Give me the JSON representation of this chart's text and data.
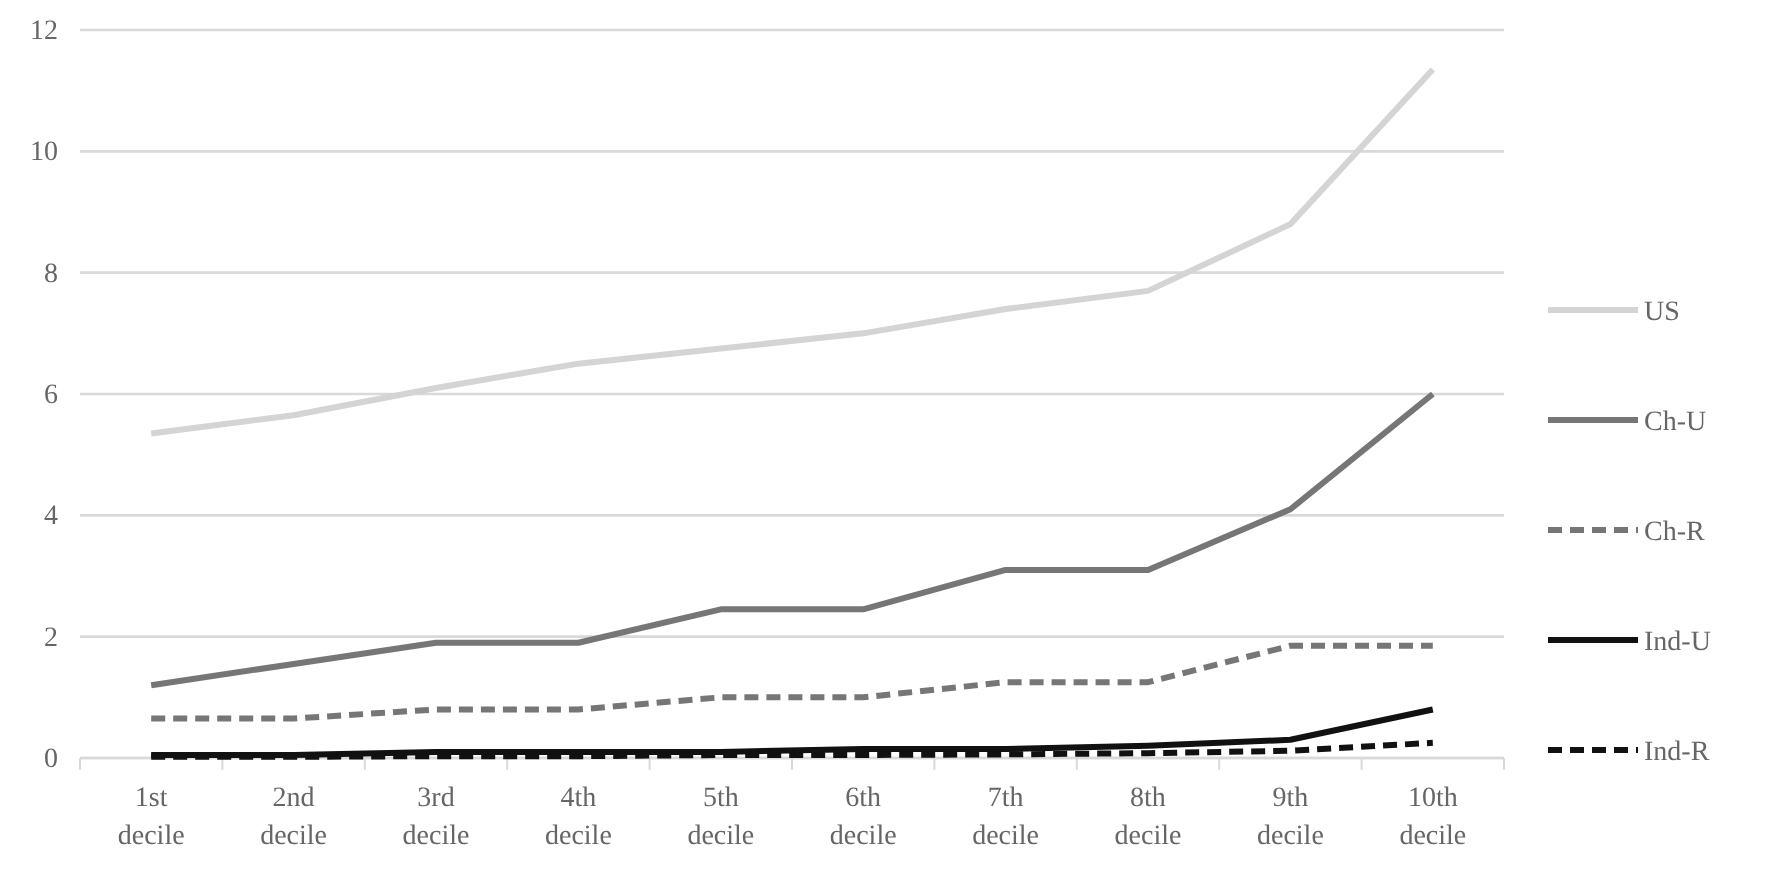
{
  "chart_data": {
    "type": "line",
    "categories": [
      "1st decile",
      "2nd decile",
      "3rd decile",
      "4th decile",
      "5th decile",
      "6th decile",
      "7th decile",
      "8th decile",
      "9th decile",
      "10th decile"
    ],
    "series": [
      {
        "name": "US",
        "color": "#d4d4d4",
        "values": [
          5.35,
          5.65,
          6.1,
          6.5,
          6.75,
          7.0,
          7.4,
          7.7,
          8.8,
          11.35
        ]
      },
      {
        "name": "Ch-U",
        "color": "#767676",
        "values": [
          1.2,
          1.55,
          1.9,
          1.9,
          2.45,
          2.45,
          3.1,
          3.1,
          4.1,
          6.0
        ]
      },
      {
        "name": "Ch-R",
        "color": "#767676",
        "line_style": "dashed",
        "values": [
          0.65,
          0.65,
          0.8,
          0.8,
          1.0,
          1.0,
          1.25,
          1.25,
          1.85,
          1.85
        ]
      },
      {
        "name": "Ind-U",
        "color": "#111111",
        "values": [
          0.05,
          0.05,
          0.1,
          0.1,
          0.1,
          0.15,
          0.15,
          0.2,
          0.3,
          0.8
        ]
      },
      {
        "name": "Ind-R",
        "color": "#111111",
        "line_style": "dashed",
        "values": [
          0.02,
          0.02,
          0.03,
          0.03,
          0.05,
          0.05,
          0.06,
          0.08,
          0.12,
          0.25
        ]
      }
    ],
    "ylim": [
      0,
      12
    ],
    "yticks": [
      0,
      2,
      4,
      6,
      8,
      10,
      12
    ],
    "grid": "y",
    "legend": "right",
    "line_style": "solid"
  }
}
